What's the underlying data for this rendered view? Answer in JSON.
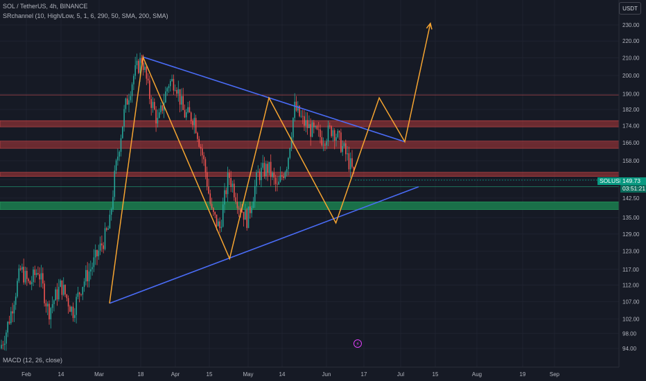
{
  "header": {
    "title": "SOL / TetherUS, 4h, BINANCE",
    "indicator": "SRchannel (10, High/Low, 5, 1, 6, 290, 50, SMA, 200, SMA)",
    "sub_indicator": "MACD (12, 26, close)"
  },
  "currency_button": "USDT",
  "symbol_tag": "SOLUSDT",
  "last_price": "149.73",
  "countdown": "03:51:21",
  "flash_icon": "lightning-icon",
  "colors": {
    "background": "#161a25",
    "grid": "#1f2330",
    "candle_up": "#26a69a",
    "candle_down": "#ef5350",
    "trendline": "#4a6cf7",
    "pattern": "#f7a531",
    "resistance_zone": "#b2383a",
    "support_zone": "#1b7a4e"
  },
  "chart_data": {
    "type": "candlestick",
    "y_axis": {
      "scale": "log",
      "ticks": [
        "230.00",
        "220.00",
        "210.00",
        "200.00",
        "190.00",
        "182.00",
        "174.00",
        "166.00",
        "158.00",
        "150.00",
        "142.50",
        "135.00",
        "129.00",
        "123.00",
        "117.00",
        "112.00",
        "107.00",
        "102.00",
        "98.00",
        "94.00"
      ]
    },
    "x_axis": {
      "ticks": [
        "Feb",
        "14",
        "Mar",
        "18",
        "Apr",
        "15",
        "May",
        "14",
        "Jun",
        "17",
        "Jul",
        "15",
        "Aug",
        "19",
        "Sep"
      ]
    },
    "zones": [
      {
        "type": "resistance",
        "from": 173.5,
        "to": 176.5
      },
      {
        "type": "resistance",
        "from": 163.5,
        "to": 166.8
      },
      {
        "type": "resistance",
        "from": 151.3,
        "to": 153.0
      },
      {
        "type": "support",
        "from": 138.0,
        "to": 141.0
      }
    ],
    "lines": [
      {
        "type": "level",
        "y": 189.5
      },
      {
        "type": "level",
        "y": 147.0
      }
    ],
    "trendlines": [
      {
        "name": "upper",
        "from": {
          "date": "2024-03-18",
          "price": 210.5
        },
        "to": {
          "date": "2024-07-29",
          "price": 166.5
        }
      },
      {
        "name": "lower",
        "from": {
          "date": "2024-03-01",
          "price": 106.5
        },
        "to": {
          "date": "2024-08-05",
          "price": 147.0
        }
      }
    ],
    "pattern_path": [
      {
        "date": "2024-03-01",
        "price": 106.5
      },
      {
        "date": "2024-03-18",
        "price": 210.5
      },
      {
        "date": "2024-05-01",
        "price": 120.5
      },
      {
        "date": "2024-05-21",
        "price": 188.0
      },
      {
        "date": "2024-06-24",
        "price": 133.0
      },
      {
        "date": "2024-07-16",
        "price": 188.0
      },
      {
        "date": "2024-07-29",
        "price": 166.5
      },
      {
        "date": "2024-08-11",
        "price": 231.0
      }
    ],
    "last_price": 149.73
  }
}
